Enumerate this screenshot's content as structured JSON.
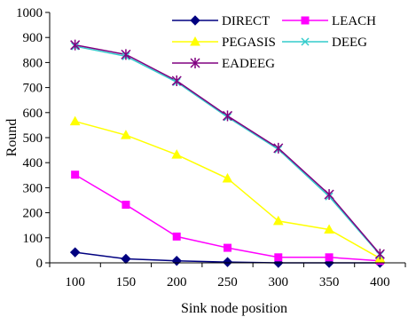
{
  "chart_data": {
    "type": "line",
    "xlabel": "Sink node position",
    "ylabel": "Round",
    "x": [
      100,
      150,
      200,
      250,
      300,
      350,
      400
    ],
    "x_tick_labels": [
      "100",
      "150",
      "200",
      "250",
      "300",
      "350",
      "400"
    ],
    "ylim": [
      0,
      1000
    ],
    "y_ticks": [
      0,
      100,
      200,
      300,
      400,
      500,
      600,
      700,
      800,
      900,
      1000
    ],
    "y_tick_labels": [
      "0",
      "100",
      "200",
      "300",
      "400",
      "500",
      "600",
      "700",
      "800",
      "900",
      "1000"
    ],
    "grid": false,
    "legend_position": "top-right",
    "series": [
      {
        "name": "DIRECT",
        "color": "#000080",
        "marker": "diamond",
        "values": [
          42,
          16,
          8,
          3,
          0,
          0,
          0
        ]
      },
      {
        "name": "LEACH",
        "color": "#ff00ff",
        "marker": "square",
        "values": [
          352,
          232,
          105,
          60,
          22,
          22,
          8
        ]
      },
      {
        "name": "PEGASIS",
        "color": "#ffff00",
        "marker": "triangle",
        "values": [
          565,
          510,
          432,
          337,
          167,
          133,
          18
        ]
      },
      {
        "name": "DEEG",
        "color": "#33cccc",
        "marker": "x",
        "values": [
          865,
          825,
          722,
          582,
          453,
          265,
          32
        ]
      },
      {
        "name": "EADEEG",
        "color": "#800080",
        "marker": "star",
        "values": [
          870,
          832,
          727,
          587,
          458,
          273,
          35
        ]
      }
    ]
  }
}
